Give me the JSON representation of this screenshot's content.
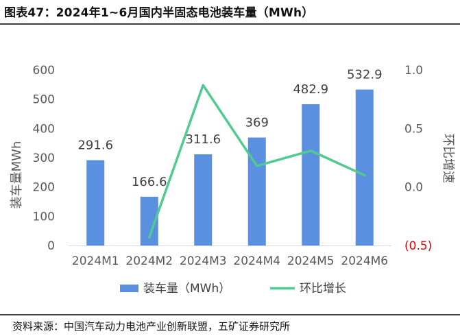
{
  "figure": {
    "title": "图表47：2024年1~6月国内半固态电池装车量（MWh）",
    "source": "资料来源：中国汽车动力电池产业创新联盟，五矿证券研究所"
  },
  "chart_data": {
    "type": "bar",
    "categories": [
      "2024M1",
      "2024M2",
      "2024M3",
      "2024M4",
      "2024M5",
      "2024M6"
    ],
    "series": [
      {
        "name": "装车量（MWh）",
        "type": "bar",
        "axis": "left",
        "values": [
          291.6,
          166.6,
          311.6,
          369,
          482.9,
          532.9
        ],
        "labels": [
          "291.6",
          "166.6",
          "311.6",
          "369",
          "482.9",
          "532.9"
        ],
        "color": "#5b8fe0"
      },
      {
        "name": "环比增长",
        "type": "line",
        "axis": "right",
        "values": [
          null,
          -0.43,
          0.87,
          0.18,
          0.31,
          0.1
        ],
        "color": "#4fcb8f"
      }
    ],
    "left_axis": {
      "label": "装车量MWh",
      "ylim": [
        0,
        600
      ],
      "ticks": [
        0,
        100,
        200,
        300,
        400,
        500,
        600
      ],
      "tick_labels": [
        "0",
        "100",
        "200",
        "300",
        "400",
        "500",
        "600"
      ]
    },
    "right_axis": {
      "label": "环比增速",
      "ylim": [
        -0.5,
        1.0
      ],
      "ticks": [
        -0.5,
        0.0,
        0.5,
        1.0
      ],
      "tick_labels": [
        "(0.5)",
        "0.0",
        "0.5",
        "1.0"
      ],
      "negative_color": "#e00000"
    },
    "grid": false,
    "legend_position": "bottom"
  }
}
